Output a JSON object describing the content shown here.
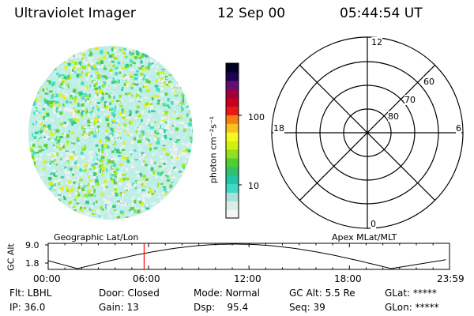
{
  "header": {
    "instrument": "Ultraviolet Imager",
    "date": "12 Sep 00",
    "time": "05:44:54 UT"
  },
  "image_panel": {
    "palette": [
      "#f0f0f0",
      "#c8f0f0",
      "#40e0c8",
      "#30c890",
      "#60d040",
      "#a0e820",
      "#e0f010"
    ]
  },
  "colorbar": {
    "unit_label": "photon cm⁻²s⁻¹",
    "tick_labels": [
      "100",
      "10"
    ],
    "colors": [
      "#f4f4f4",
      "#d8ece8",
      "#a8e0d8",
      "#40d8c8",
      "#20c8a8",
      "#30c070",
      "#50d030",
      "#90e020",
      "#d0f010",
      "#f8f820",
      "#f8c020",
      "#f88010",
      "#e81818",
      "#c80020",
      "#a00040",
      "#601070",
      "#200050",
      "#000020"
    ]
  },
  "polar_plot": {
    "top_label": "12",
    "left_label": "18",
    "right_label": "6",
    "bottom_label": "0",
    "ring_labels": [
      "60",
      "70",
      "80"
    ]
  },
  "altitude_strip": {
    "left_title": "Geographic Lat/Lon",
    "right_title": "Apex MLat/MLT",
    "axis_label": "GC Alt",
    "y_ticks": [
      "9.0",
      "1.8"
    ],
    "x_ticks": [
      "00:00",
      "06:00",
      "12:00",
      "18:00",
      "23:59"
    ],
    "marker_time": "05:44",
    "marker_color": "#ff0000"
  },
  "info": {
    "flt": "Flt: LBHL",
    "door": "Door: Closed",
    "mode": "Mode: Normal",
    "gc_alt": "GC Alt: 5.5 Re",
    "glat": "GLat: *****",
    "ip": "IP: 36.0",
    "gain": "Gain: 13",
    "dsp": "Dsp:    95.4",
    "seq": "Seq: 39",
    "glon": "GLon: *****"
  }
}
